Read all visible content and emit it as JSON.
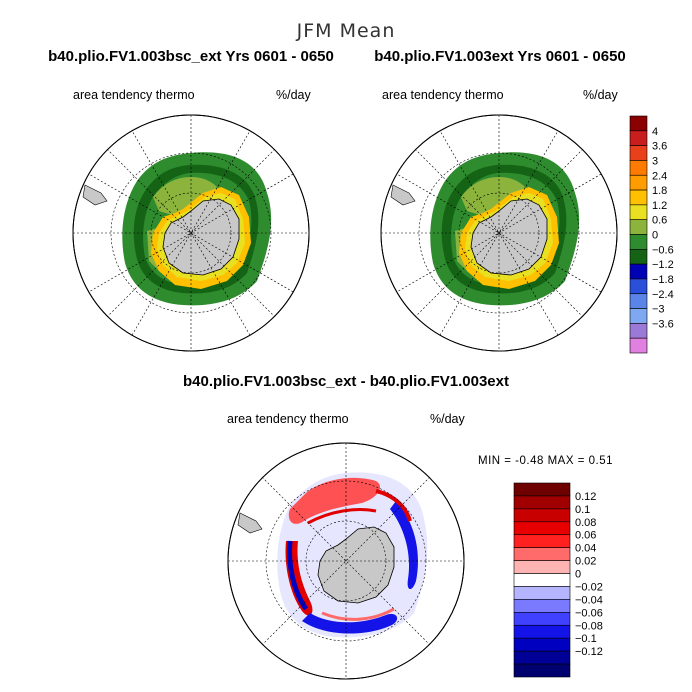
{
  "figure": {
    "title": "JFM Mean"
  },
  "panels": [
    {
      "id": "left",
      "title": "b40.plio.FV1.003bsc_ext  Yrs 0601 - 0650",
      "variable": "area tendency thermo",
      "units": "%/day"
    },
    {
      "id": "right",
      "title": "b40.plio.FV1.003ext  Yrs 0601 - 0650",
      "variable": "area tendency thermo",
      "units": "%/day"
    },
    {
      "id": "diff",
      "title": "b40.plio.FV1.003bsc_ext - b40.plio.FV1.003ext",
      "variable": "area tendency thermo",
      "units": "%/day",
      "stats": "MIN =   -0.48  MAX =    0.51"
    }
  ],
  "chart_data": [
    {
      "type": "heatmap",
      "projection": "south-polar-stereographic",
      "title": "b40.plio.FV1.003bsc_ext  Yrs 0601 - 0650",
      "variable": "area tendency thermo",
      "units": "%/day",
      "colorbar": {
        "levels": [
          4,
          3.6,
          3,
          2.4,
          1.8,
          1.2,
          0.6,
          0,
          -0.6,
          -1.2,
          -1.8,
          -2.4,
          -3,
          -3.6
        ],
        "colors": [
          "#8b0000",
          "#c81e1e",
          "#e8401a",
          "#ff7a00",
          "#ff9d00",
          "#ffc000",
          "#e8e020",
          "#8cb43c",
          "#2e8b2e",
          "#156415",
          "#0000b4",
          "#2a4fd8",
          "#5a84e8",
          "#7ea8f0",
          "#9a7ad6",
          "#e080e0"
        ]
      }
    },
    {
      "type": "heatmap",
      "projection": "south-polar-stereographic",
      "title": "b40.plio.FV1.003ext  Yrs 0601 - 0650",
      "variable": "area tendency thermo",
      "units": "%/day",
      "colorbar": "shared"
    },
    {
      "type": "heatmap",
      "projection": "south-polar-stereographic",
      "title": "b40.plio.FV1.003bsc_ext - b40.plio.FV1.003ext",
      "variable": "area tendency thermo",
      "units": "%/day",
      "min": -0.48,
      "max": 0.51,
      "colorbar": {
        "levels": [
          0.12,
          0.1,
          0.08,
          0.06,
          0.04,
          0.02,
          0,
          -0.02,
          -0.04,
          -0.06,
          -0.08,
          -0.1,
          -0.12
        ],
        "colors": [
          "#6e0000",
          "#a00000",
          "#c80000",
          "#e80000",
          "#ff2020",
          "#ff6a6a",
          "#ffb4b4",
          "#ffffff",
          "#b4b4ff",
          "#7a7aff",
          "#4040ff",
          "#1414e8",
          "#0000c0",
          "#000096",
          "#00006e"
        ]
      }
    }
  ]
}
